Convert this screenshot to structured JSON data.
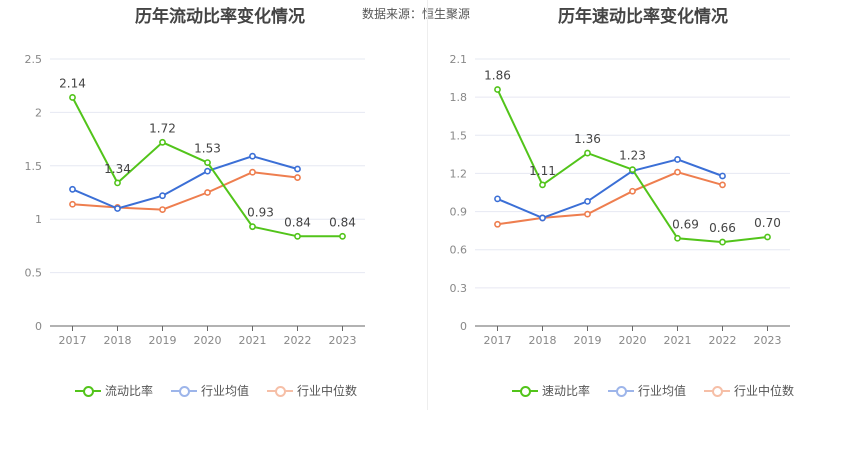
{
  "header": {
    "source": "数据来源：恒生聚源"
  },
  "legend_labels": [
    "行业均值",
    "行业中位数"
  ],
  "chart_data": [
    {
      "type": "line",
      "title": "历年流动比率变化情况",
      "categories": [
        "2017",
        "2018",
        "2019",
        "2020",
        "2021",
        "2022",
        "2023"
      ],
      "yticks": [
        "0",
        "0.5",
        "1",
        "1.5",
        "2",
        "2.5"
      ],
      "ylim": [
        0,
        2.5
      ],
      "grid": true,
      "legend_position": "bottom",
      "series": [
        {
          "name": "流动比率",
          "color": "#52c41a",
          "values": [
            2.14,
            1.34,
            1.72,
            1.53,
            0.93,
            0.84,
            0.84
          ],
          "labels": [
            "2.14",
            "1.34",
            "1.72",
            "1.53",
            "0.93",
            "0.84",
            "0.84"
          ]
        },
        {
          "name": "行业均值",
          "color": "#3b6fd6",
          "values": [
            1.28,
            1.1,
            1.22,
            1.45,
            1.59,
            1.47,
            null
          ]
        },
        {
          "name": "行业中位数",
          "color": "#ee7e4f",
          "values": [
            1.14,
            1.11,
            1.09,
            1.25,
            1.44,
            1.39,
            null
          ]
        }
      ]
    },
    {
      "type": "line",
      "title": "历年速动比率变化情况",
      "categories": [
        "2017",
        "2018",
        "2019",
        "2020",
        "2021",
        "2022",
        "2023"
      ],
      "yticks": [
        "0",
        "0.3",
        "0.6",
        "0.9",
        "1.2",
        "1.5",
        "1.8",
        "2.1"
      ],
      "ylim": [
        0,
        2.1
      ],
      "grid": true,
      "legend_position": "bottom",
      "series": [
        {
          "name": "速动比率",
          "color": "#52c41a",
          "values": [
            1.86,
            1.11,
            1.36,
            1.23,
            0.69,
            0.66,
            0.7
          ],
          "labels": [
            "1.86",
            "1.11",
            "1.36",
            "1.23",
            "0.69",
            "0.66",
            "0.70"
          ]
        },
        {
          "name": "行业均值",
          "color": "#3b6fd6",
          "values": [
            1.0,
            0.85,
            0.98,
            1.22,
            1.31,
            1.18,
            null
          ]
        },
        {
          "name": "行业中位数",
          "color": "#ee7e4f",
          "values": [
            0.8,
            0.85,
            0.88,
            1.06,
            1.21,
            1.11,
            null
          ]
        }
      ]
    }
  ]
}
